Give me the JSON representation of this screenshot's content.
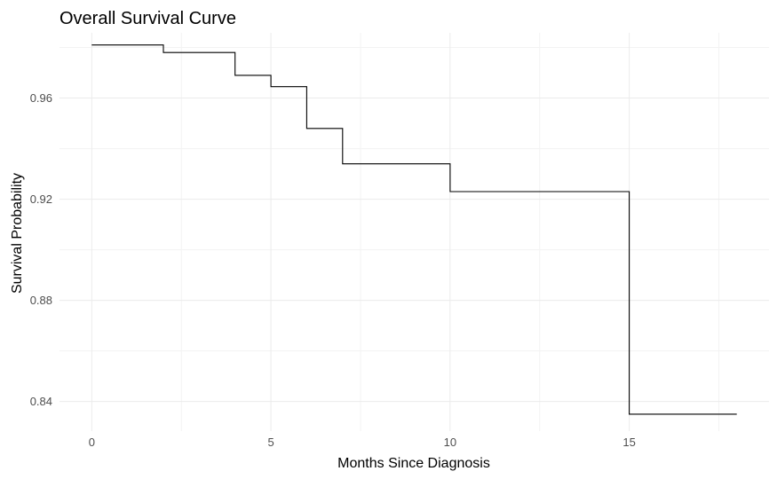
{
  "chart_data": {
    "type": "line",
    "title": "Overall Survival Curve",
    "xlabel": "Months Since Diagnosis",
    "ylabel": "Survival Probability",
    "step": true,
    "grid": true,
    "xlim": [
      -0.9,
      18.9
    ],
    "ylim": [
      0.8283,
      0.9858
    ],
    "xticks": [
      0,
      5,
      10,
      15
    ],
    "xtick_labels": [
      "0",
      "5",
      "10",
      "15"
    ],
    "yticks": [
      0.84,
      0.88,
      0.92,
      0.96
    ],
    "ytick_labels": [
      "0.84",
      "0.88",
      "0.92",
      "0.96"
    ],
    "series": [
      {
        "color": "#000000",
        "x": [
          0,
          2,
          4,
          5,
          6,
          7,
          10,
          15,
          18
        ],
        "y": [
          0.981,
          0.978,
          0.969,
          0.9645,
          0.948,
          0.934,
          0.923,
          0.835,
          0.835
        ]
      }
    ]
  }
}
